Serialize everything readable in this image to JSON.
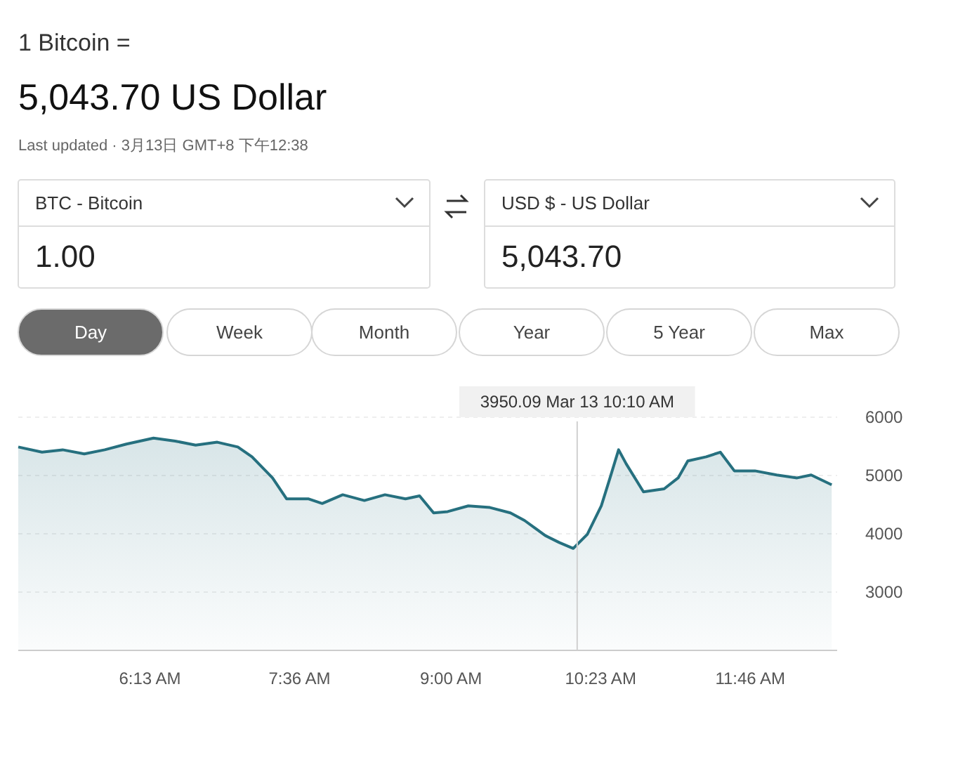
{
  "chart_data": [
    {
      "type": "other",
      "title": "1 Bitcoin =",
      "subtitle": "5,043.70 US Dollar",
      "annotations": [
        "Last updated · 3月13日 GMT+8 下午12:38",
        "BTC - Bitcoin",
        "1.00",
        "USD $ - US Dollar",
        "5,043.70",
        "Day",
        "Week",
        "Month",
        "Year",
        "5 Year",
        "Max"
      ]
    },
    {
      "type": "area",
      "grid": "y",
      "xlim": [
        5.0,
        12.57
      ],
      "ylim": [
        2000,
        6000
      ],
      "xticks": [
        {
          "value": 6.2167,
          "label": "6:13 AM"
        },
        {
          "value": 7.6,
          "label": "7:36 AM"
        },
        {
          "value": 9.0,
          "label": "9:00 AM"
        },
        {
          "value": 10.3833,
          "label": "10:23 AM"
        },
        {
          "value": 11.7667,
          "label": "11:46 AM"
        }
      ],
      "yticks": [
        3000,
        4000,
        5000,
        6000
      ],
      "ref_lines": [
        {
          "axis": "x",
          "value": 10.1667,
          "label": "3950.09 Mar 13 10:10 AM",
          "color": "#d0d0d0"
        }
      ],
      "series": [
        {
          "color": "#26707f",
          "x": [
            5.0,
            5.22,
            5.41,
            5.61,
            5.8,
            6.0,
            6.25,
            6.45,
            6.64,
            6.84,
            7.03,
            7.16,
            7.35,
            7.48,
            7.68,
            7.81,
            8.0,
            8.2,
            8.39,
            8.58,
            8.71,
            8.84,
            8.97,
            9.16,
            9.36,
            9.55,
            9.68,
            9.87,
            10.0,
            10.13,
            10.26,
            10.39,
            10.47,
            10.55,
            10.62,
            10.78,
            10.97,
            11.1,
            11.19,
            11.36,
            11.49,
            11.62,
            11.81,
            12.01,
            12.2,
            12.33,
            12.52
          ],
          "values": [
            5490,
            5400,
            5440,
            5370,
            5440,
            5540,
            5640,
            5590,
            5520,
            5570,
            5490,
            5320,
            4960,
            4600,
            4600,
            4520,
            4670,
            4570,
            4670,
            4600,
            4650,
            4360,
            4380,
            4480,
            4450,
            4360,
            4230,
            3970,
            3850,
            3750,
            3990,
            4480,
            4960,
            5440,
            5200,
            4720,
            4770,
            4960,
            5250,
            5320,
            5400,
            5080,
            5080,
            5010,
            4960,
            5010,
            4840
          ]
        }
      ]
    }
  ]
}
